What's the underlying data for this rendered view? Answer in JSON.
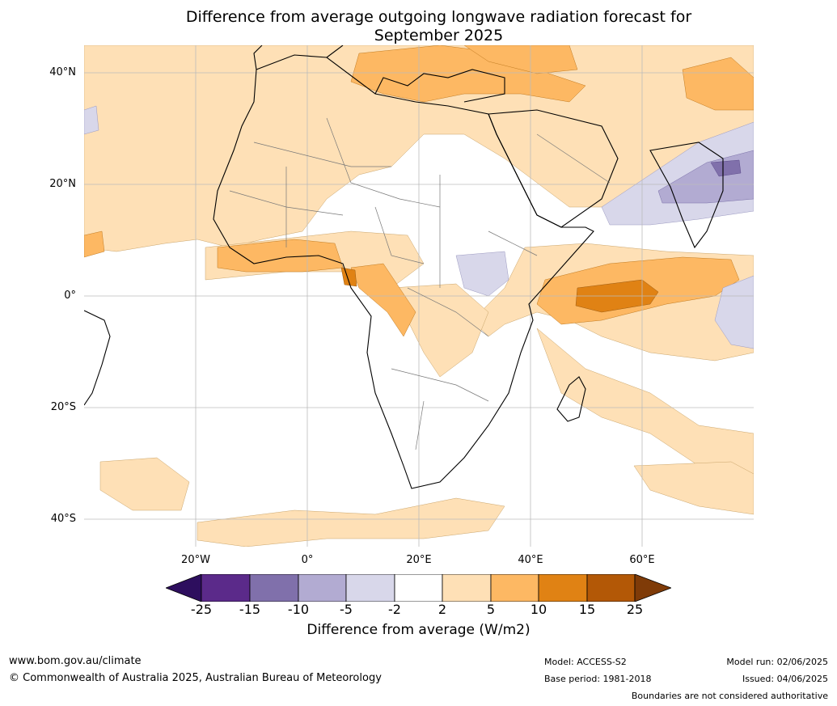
{
  "title_line1": "Difference from average outgoing longwave radiation forecast for",
  "title_line2": "September 2025",
  "lat_labels": [
    "40°N",
    "20°N",
    "0°",
    "20°S",
    "40°S"
  ],
  "lon_labels": [
    "20°W",
    "0°",
    "20°E",
    "40°E",
    "60°E"
  ],
  "colorbar": {
    "title": "Difference from average (W/m2)",
    "ticks": [
      "-25",
      "-15",
      "-10",
      "-5",
      "-2",
      "2",
      "5",
      "10",
      "15",
      "25"
    ],
    "colors": [
      "#2d0e5e",
      "#5b2a8a",
      "#8070ab",
      "#b2abd2",
      "#d8d7ea",
      "#ffffff",
      "#fee0b6",
      "#fdb863",
      "#e08214",
      "#b35806",
      "#7f3b08"
    ]
  },
  "footer": {
    "url": "www.bom.gov.au/climate",
    "copyright": "© Commonwealth of Australia 2025, Australian Bureau of Meteorology",
    "model": "Model: ACCESS-S2",
    "base_period": "Base period: 1981-2018",
    "model_run": "Model run: 02/06/2025",
    "issued": "Issued: 04/06/2025",
    "disclaimer": "Boundaries are not considered authoritative"
  }
}
